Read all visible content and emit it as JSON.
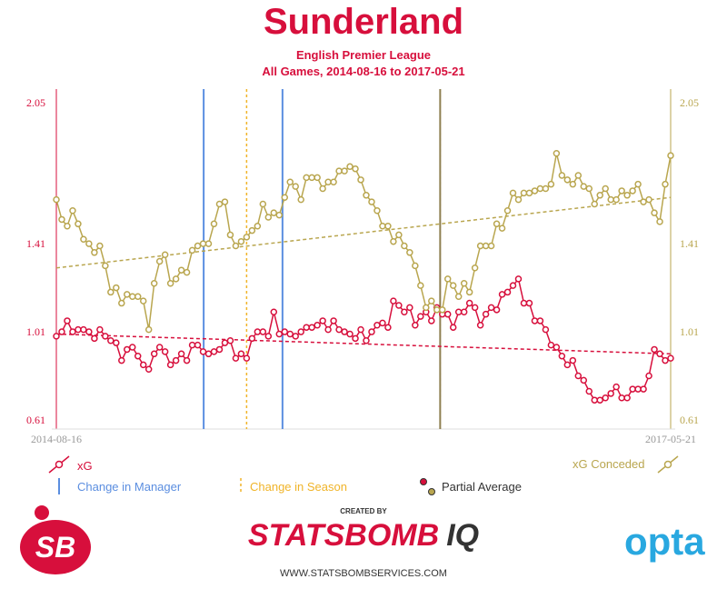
{
  "header": {
    "title": "Sunderland",
    "league": "English Premier League",
    "range": "All Games, 2014-08-16 to 2017-05-21"
  },
  "legend": {
    "xg": "xG",
    "xg_conceded": "xG Conceded",
    "manager_change": "Change in Manager",
    "season_change": "Change in Season",
    "partial_average": "Partial Average"
  },
  "footer": {
    "created_by": "CREATED BY",
    "brand_main": "STATSBOMB",
    "brand_suffix": "IQ",
    "url": "WWW.STATSBOMBSERVICES.COM",
    "logo_left": "SB",
    "logo_right": "opta"
  },
  "colors": {
    "xg": "#d70f3c",
    "xg_conceded": "#b9a64f",
    "manager": "#5b8ee0",
    "season": "#f0b429",
    "combined_line": "#8e8052",
    "axis_text": "#999999"
  },
  "chart_data": {
    "type": "line",
    "x_start_label": "2014-08-16",
    "x_end_label": "2017-05-21",
    "yticks": [
      "0.61",
      "1.01",
      "1.41",
      "2.05"
    ],
    "ylim": [
      0.61,
      2.05
    ],
    "n_points": 114,
    "series": [
      {
        "name": "xG",
        "color": "#d70f3c",
        "values": [
          0.99,
          1.01,
          1.06,
          1.01,
          1.02,
          1.02,
          1.01,
          0.98,
          1.02,
          0.99,
          0.97,
          0.96,
          0.88,
          0.93,
          0.94,
          0.9,
          0.86,
          0.84,
          0.91,
          0.94,
          0.92,
          0.86,
          0.88,
          0.91,
          0.88,
          0.95,
          0.95,
          0.92,
          0.91,
          0.92,
          0.93,
          0.96,
          0.97,
          0.89,
          0.91,
          0.89,
          0.98,
          1.01,
          1.01,
          0.99,
          1.1,
          1.0,
          1.01,
          1.0,
          0.99,
          1.01,
          1.03,
          1.03,
          1.04,
          1.06,
          1.02,
          1.06,
          1.02,
          1.01,
          1.0,
          0.98,
          1.02,
          0.97,
          1.01,
          1.04,
          1.05,
          1.03,
          1.15,
          1.13,
          1.1,
          1.12,
          1.04,
          1.08,
          1.1,
          1.06,
          1.12,
          1.09,
          1.09,
          1.03,
          1.1,
          1.1,
          1.14,
          1.12,
          1.04,
          1.09,
          1.12,
          1.11,
          1.18,
          1.19,
          1.22,
          1.25,
          1.14,
          1.14,
          1.06,
          1.06,
          1.02,
          0.95,
          0.94,
          0.9,
          0.86,
          0.88,
          0.81,
          0.79,
          0.74,
          0.7,
          0.7,
          0.71,
          0.73,
          0.76,
          0.71,
          0.71,
          0.75,
          0.75,
          0.75,
          0.81,
          0.93,
          0.91,
          0.88,
          0.89
        ]
      },
      {
        "name": "xG Conceded",
        "color": "#b9a64f",
        "values": [
          1.61,
          1.52,
          1.49,
          1.56,
          1.5,
          1.43,
          1.41,
          1.37,
          1.4,
          1.31,
          1.19,
          1.21,
          1.14,
          1.18,
          1.17,
          1.17,
          1.15,
          1.02,
          1.23,
          1.33,
          1.36,
          1.23,
          1.25,
          1.29,
          1.28,
          1.38,
          1.4,
          1.41,
          1.41,
          1.5,
          1.59,
          1.6,
          1.45,
          1.4,
          1.42,
          1.44,
          1.47,
          1.49,
          1.59,
          1.53,
          1.55,
          1.54,
          1.62,
          1.69,
          1.67,
          1.61,
          1.71,
          1.71,
          1.71,
          1.66,
          1.69,
          1.69,
          1.74,
          1.74,
          1.76,
          1.75,
          1.7,
          1.63,
          1.6,
          1.56,
          1.49,
          1.49,
          1.42,
          1.45,
          1.4,
          1.37,
          1.31,
          1.22,
          1.12,
          1.15,
          1.11,
          1.11,
          1.25,
          1.22,
          1.17,
          1.23,
          1.19,
          1.3,
          1.4,
          1.4,
          1.4,
          1.5,
          1.48,
          1.56,
          1.64,
          1.61,
          1.64,
          1.64,
          1.65,
          1.66,
          1.66,
          1.68,
          1.82,
          1.72,
          1.7,
          1.68,
          1.72,
          1.67,
          1.66,
          1.59,
          1.63,
          1.66,
          1.61,
          1.61,
          1.65,
          1.63,
          1.65,
          1.68,
          1.6,
          1.61,
          1.55,
          1.51,
          1.68,
          1.81
        ]
      }
    ],
    "trend_xg": [
      1.0,
      0.91
    ],
    "trend_xg_conceded": [
      1.3,
      1.62
    ],
    "manager_changes_index": [
      27.1,
      41.6
    ],
    "season_changes_index": [
      35.0,
      70.6
    ],
    "combined_change_index": [
      70.6
    ]
  }
}
